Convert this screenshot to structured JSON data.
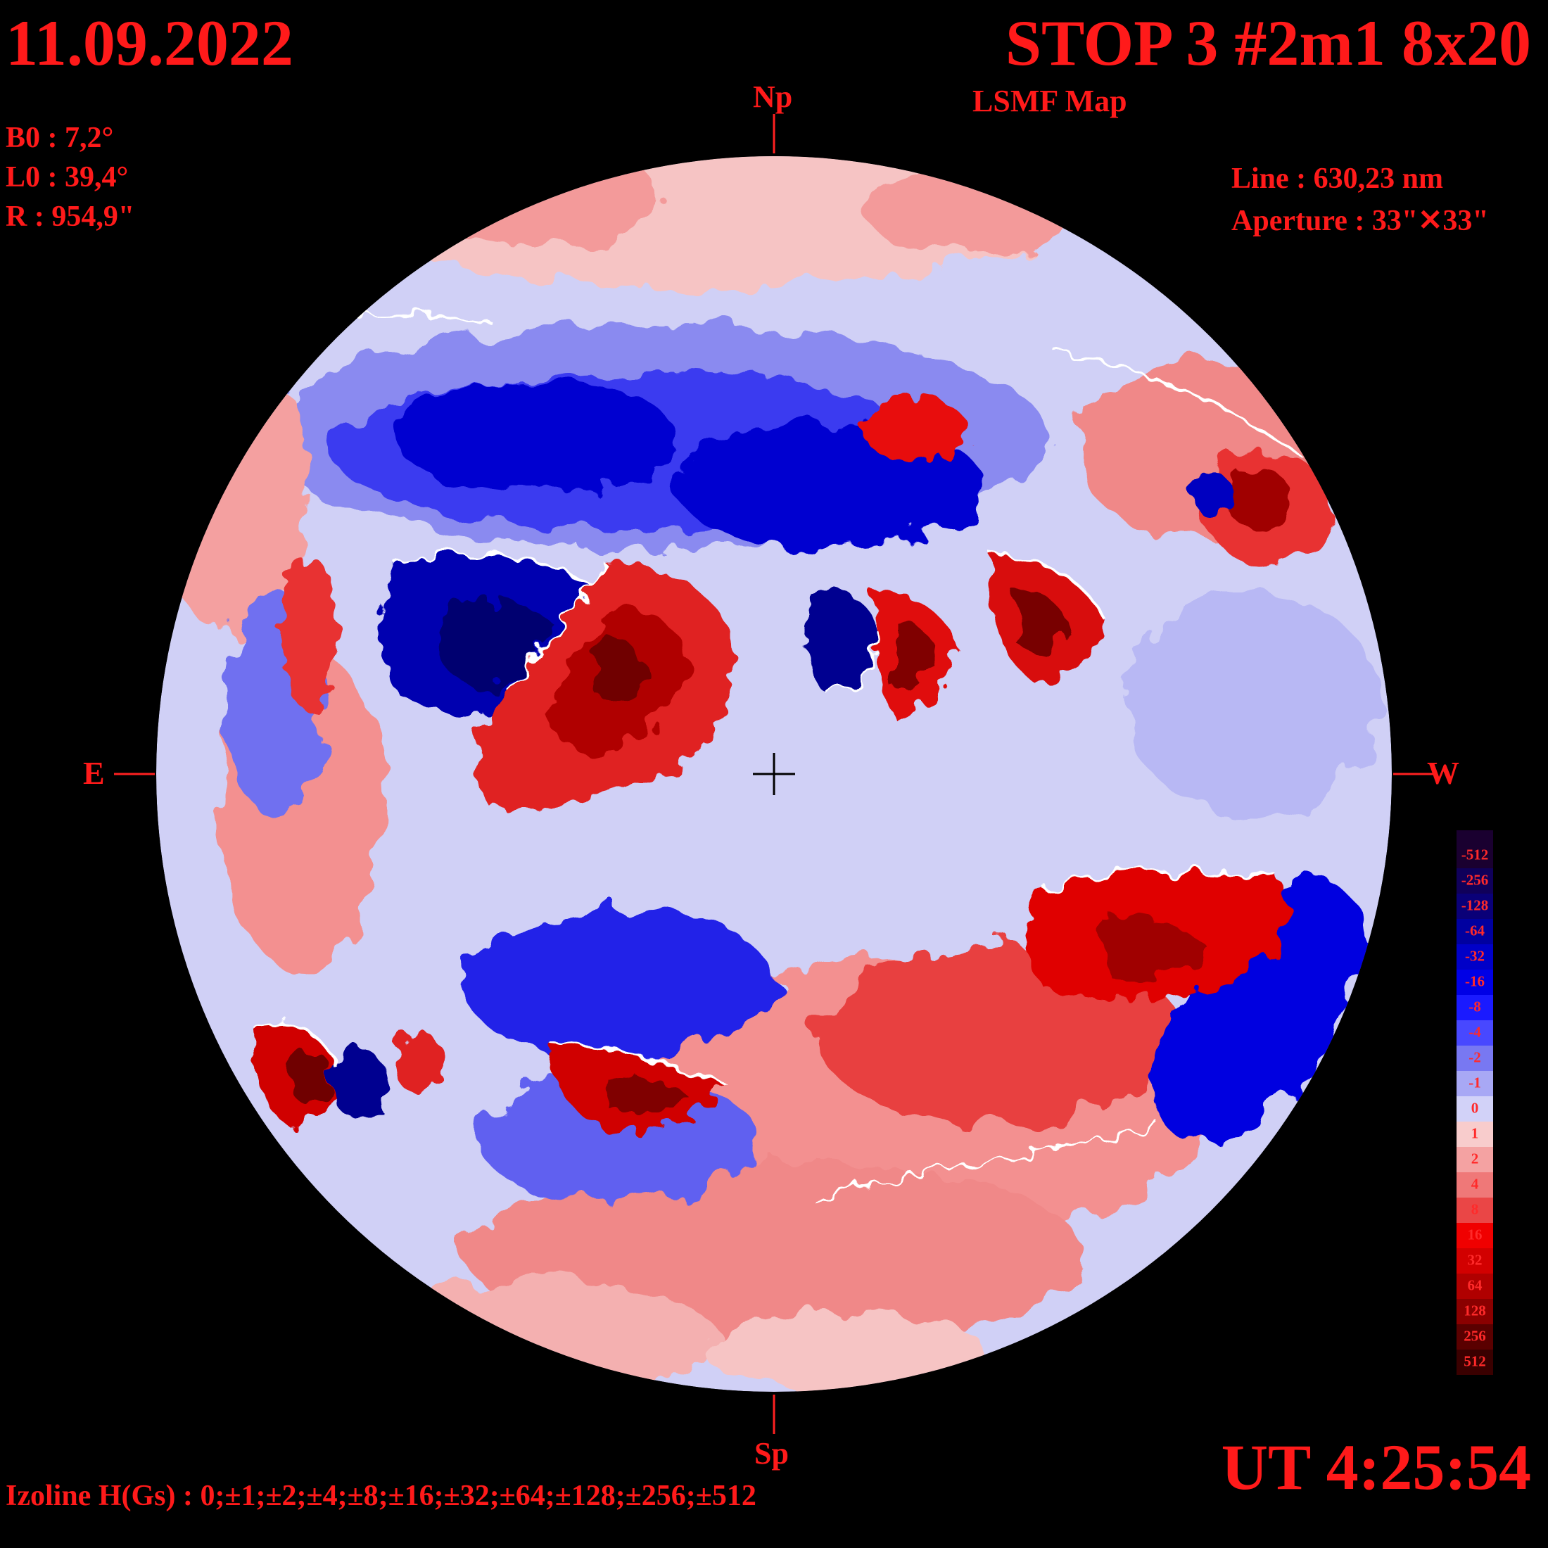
{
  "header": {
    "date": "11.09.2022",
    "title": "STOP 3 #2m1 8x20",
    "subtitle": "LSMF  Map"
  },
  "params": {
    "b0": "B0 : 7,2°",
    "l0": "L0 : 39,4°",
    "r": "R  : 954,9\""
  },
  "instrument": {
    "line": "Line :  630,23 nm",
    "aperture": "Aperture : 33\"✕33\""
  },
  "compass": {
    "north": "Np",
    "south": "Sp",
    "east": "E",
    "west": "W"
  },
  "time": "UT 4:25:54",
  "izoline": "Izoline H(Gs) : 0;±1;±2;±4;±8;±16;±32;±64;±128;±256;±512",
  "legend": {
    "levels": [
      "-512",
      "-256",
      "-128",
      "-64",
      "-32",
      "-16",
      "-8",
      "-4",
      "-2",
      "-1",
      "0",
      "1",
      "2",
      "4",
      "8",
      "16",
      "32",
      "64",
      "128",
      "256",
      "512"
    ],
    "colors": [
      "#1a0030",
      "#10005a",
      "#0a0078",
      "#0000a0",
      "#0000c8",
      "#0000e6",
      "#1a1aff",
      "#4848ff",
      "#7878f2",
      "#a8a8f5",
      "#d2d2f8",
      "#f8cccc",
      "#f4a2a2",
      "#ef7878",
      "#ea4646",
      "#f00000",
      "#d20000",
      "#b00000",
      "#8a0000",
      "#5a0000",
      "#3a0000"
    ]
  },
  "map": {
    "field_colors": {
      "neutral_neg": "#c8c8f5",
      "neutral_pos": "#f6c4c4",
      "weak_neg": "#8a8af0",
      "mid_neg": "#3030f0",
      "strong_neg": "#0000c0",
      "core_neg": "#000070",
      "weak_pos": "#f08c8c",
      "mid_pos": "#f03030",
      "strong_pos": "#c80000",
      "core_pos": "#800000",
      "zero_contour": "#ffffff"
    }
  }
}
